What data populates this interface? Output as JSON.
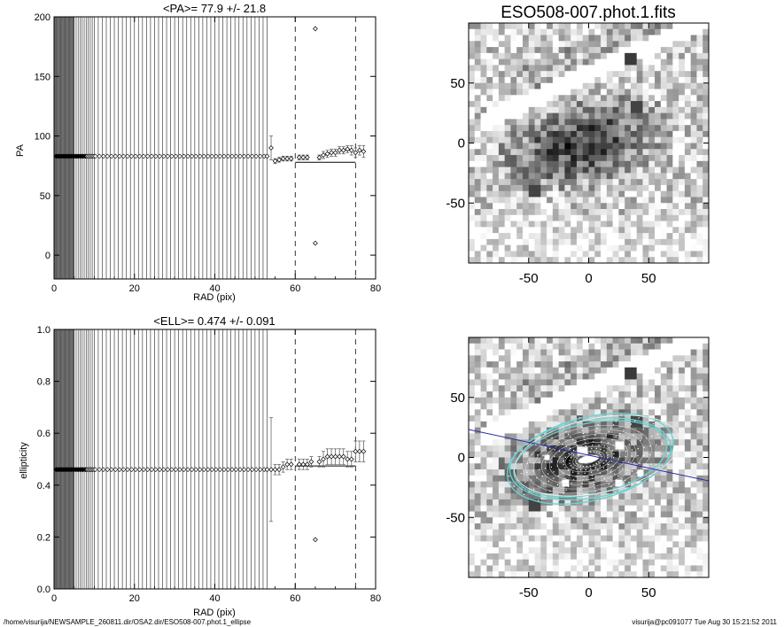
{
  "pa_panel": {
    "title": "<PA>=  77.9 +/-  21.8",
    "xlabel": "RAD (pix)",
    "ylabel": "PA"
  },
  "ell_panel": {
    "title": "<ELL>= 0.474 +/-  0.091",
    "xlabel": "RAD (pix)",
    "ylabel": "ellipticity"
  },
  "image_panel": {
    "title": "ESO508-007.phot.1.fits"
  },
  "footer": {
    "path": "/home/visurija/NEWSAMPLE_260811.dir/OSA2.dir/ESO508-007.phot.1_ellipse",
    "user_time": "visurija@pc091077  Tue Aug 30 15:21:52 2011"
  },
  "colors": {
    "ellipse_cyan": "#6ad4d4",
    "pa_line_blue": "#2a2ab0",
    "grey_map": "#808080"
  },
  "chart_data": [
    {
      "type": "scatter",
      "title": "<PA>=  77.9 +/-  21.8",
      "xlabel": "RAD (pix)",
      "ylabel": "PA",
      "xlim": [
        0,
        80
      ],
      "ylim": [
        -20,
        200
      ],
      "xticks": [
        0,
        20,
        40,
        60,
        80
      ],
      "yticks": [
        0,
        50,
        100,
        150,
        200
      ],
      "vlines_dashed": [
        60,
        75
      ],
      "mean_segment": {
        "x": [
          60,
          75
        ],
        "y": 77.9
      },
      "series": [
        {
          "values": [
            {
              "x": 0.5,
              "y": 83
            },
            {
              "x": 5,
              "y": 83
            },
            {
              "x": 10,
              "y": 83
            },
            {
              "x": 15,
              "y": 83
            },
            {
              "x": 20,
              "y": 83
            },
            {
              "x": 25,
              "y": 83
            },
            {
              "x": 30,
              "y": 83
            },
            {
              "x": 35,
              "y": 83
            },
            {
              "x": 40,
              "y": 83
            },
            {
              "x": 45,
              "y": 83
            },
            {
              "x": 50,
              "y": 83
            },
            {
              "x": 53,
              "y": 83
            },
            {
              "x": 54,
              "y": 90,
              "err": 10
            },
            {
              "x": 55,
              "y": 79,
              "err": 2
            },
            {
              "x": 56,
              "y": 80,
              "err": 2
            },
            {
              "x": 57,
              "y": 81,
              "err": 2
            },
            {
              "x": 58,
              "y": 81,
              "err": 2
            },
            {
              "x": 59,
              "y": 81,
              "err": 2
            },
            {
              "x": 61,
              "y": 82,
              "err": 2
            },
            {
              "x": 62,
              "y": 82,
              "err": 2
            },
            {
              "x": 63,
              "y": 82,
              "err": 2
            },
            {
              "x": 65,
              "y": 190
            },
            {
              "x": 65,
              "y": 10
            },
            {
              "x": 66,
              "y": 82,
              "err": 2
            },
            {
              "x": 67,
              "y": 84,
              "err": 3
            },
            {
              "x": 68,
              "y": 85,
              "err": 3
            },
            {
              "x": 69,
              "y": 86,
              "err": 3
            },
            {
              "x": 70,
              "y": 86,
              "err": 3
            },
            {
              "x": 71,
              "y": 88,
              "err": 3
            },
            {
              "x": 72,
              "y": 88,
              "err": 3
            },
            {
              "x": 73,
              "y": 89,
              "err": 3
            },
            {
              "x": 74,
              "y": 88,
              "err": 4
            },
            {
              "x": 75,
              "y": 86,
              "err": 4
            },
            {
              "x": 76,
              "y": 88,
              "err": 4
            },
            {
              "x": 77,
              "y": 87,
              "err": 5
            }
          ]
        }
      ]
    },
    {
      "type": "scatter",
      "title": "<ELL>= 0.474 +/-  0.091",
      "xlabel": "RAD (pix)",
      "ylabel": "ellipticity",
      "xlim": [
        0,
        80
      ],
      "ylim": [
        0,
        1
      ],
      "xticks": [
        0,
        20,
        40,
        60,
        80
      ],
      "yticks": [
        0.0,
        0.2,
        0.4,
        0.6,
        0.8,
        1.0
      ],
      "vlines_dashed": [
        60,
        75
      ],
      "mean_segment": {
        "x": [
          60,
          75
        ],
        "y": 0.474
      },
      "series": [
        {
          "values": [
            {
              "x": 0.5,
              "y": 0.46
            },
            {
              "x": 5,
              "y": 0.46
            },
            {
              "x": 10,
              "y": 0.46
            },
            {
              "x": 15,
              "y": 0.46
            },
            {
              "x": 20,
              "y": 0.46
            },
            {
              "x": 25,
              "y": 0.46
            },
            {
              "x": 30,
              "y": 0.46
            },
            {
              "x": 35,
              "y": 0.46
            },
            {
              "x": 40,
              "y": 0.46
            },
            {
              "x": 45,
              "y": 0.46
            },
            {
              "x": 50,
              "y": 0.46
            },
            {
              "x": 53,
              "y": 0.46
            },
            {
              "x": 54,
              "y": 0.46,
              "err": 0.2
            },
            {
              "x": 55,
              "y": 0.46,
              "err": 0.02
            },
            {
              "x": 56,
              "y": 0.46,
              "err": 0.02
            },
            {
              "x": 57,
              "y": 0.47,
              "err": 0.02
            },
            {
              "x": 58,
              "y": 0.48,
              "err": 0.02
            },
            {
              "x": 59,
              "y": 0.48,
              "err": 0.02
            },
            {
              "x": 61,
              "y": 0.48,
              "err": 0.02
            },
            {
              "x": 62,
              "y": 0.48,
              "err": 0.02
            },
            {
              "x": 63,
              "y": 0.48,
              "err": 0.02
            },
            {
              "x": 64,
              "y": 0.49,
              "err": 0.02
            },
            {
              "x": 65,
              "y": 0.19
            },
            {
              "x": 66,
              "y": 0.49,
              "err": 0.02
            },
            {
              "x": 67,
              "y": 0.5,
              "err": 0.03
            },
            {
              "x": 68,
              "y": 0.51,
              "err": 0.03
            },
            {
              "x": 69,
              "y": 0.51,
              "err": 0.03
            },
            {
              "x": 70,
              "y": 0.51,
              "err": 0.03
            },
            {
              "x": 71,
              "y": 0.51,
              "err": 0.03
            },
            {
              "x": 72,
              "y": 0.51,
              "err": 0.03
            },
            {
              "x": 73,
              "y": 0.5,
              "err": 0.03
            },
            {
              "x": 74,
              "y": 0.5,
              "err": 0.03
            },
            {
              "x": 75,
              "y": 0.53,
              "err": 0.04
            },
            {
              "x": 76,
              "y": 0.53,
              "err": 0.04
            },
            {
              "x": 77,
              "y": 0.53,
              "err": 0.04
            }
          ]
        }
      ]
    },
    {
      "type": "heatmap",
      "title": "ESO508-007.phot.1.fits",
      "xlim": [
        -100,
        100
      ],
      "ylim": [
        -100,
        100
      ],
      "xticks": [
        -50,
        0,
        50
      ],
      "yticks": [
        -50,
        0,
        50
      ]
    },
    {
      "type": "heatmap",
      "title": "",
      "xlim": [
        -100,
        100
      ],
      "ylim": [
        -100,
        100
      ],
      "xticks": [
        -50,
        0,
        50
      ],
      "yticks": [
        -50,
        0,
        50
      ]
    }
  ]
}
